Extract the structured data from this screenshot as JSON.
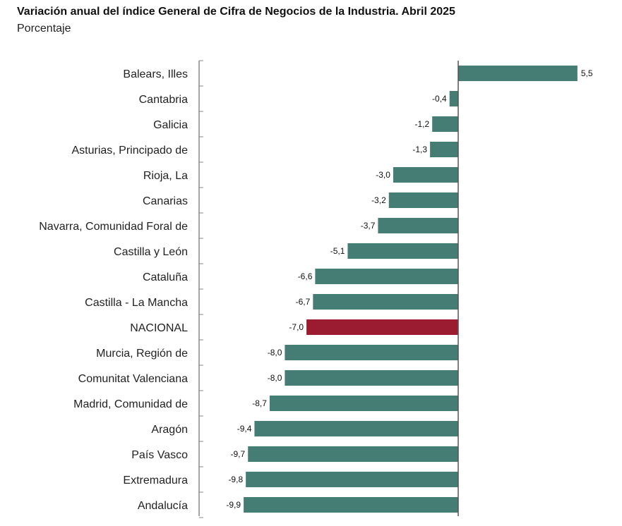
{
  "chart_data": {
    "type": "bar",
    "orientation": "horizontal",
    "title": "Variación anual del índice General de Cifra de Negocios de la Industria. Abril 2025",
    "subtitle": "Porcentaje",
    "categories": [
      "Balears, Illes",
      "Cantabria",
      "Galicia",
      "Asturias, Principado de",
      "Rioja, La",
      "Canarias",
      "Navarra, Comunidad Foral de",
      "Castilla y León",
      "Cataluña",
      "Castilla - La Mancha",
      "NACIONAL",
      "Murcia, Región de",
      "Comunitat Valenciana",
      "Madrid, Comunidad de",
      "Aragón",
      "País Vasco",
      "Extremadura",
      "Andalucía"
    ],
    "values": [
      5.5,
      -0.4,
      -1.2,
      -1.3,
      -3.0,
      -3.2,
      -3.7,
      -5.1,
      -6.6,
      -6.7,
      -7.0,
      -8.0,
      -8.0,
      -8.7,
      -9.4,
      -9.7,
      -9.8,
      -9.9
    ],
    "value_labels": [
      "5,5",
      "-0,4",
      "-1,2",
      "-1,3",
      "-3,0",
      "-3,2",
      "-3,7",
      "-5,1",
      "-6,6",
      "-6,7",
      "-7,0",
      "-8,0",
      "-8,0",
      "-8,7",
      "-9,4",
      "-9,7",
      "-9,8",
      "-9,9"
    ],
    "highlight_category": "NACIONAL",
    "colors": {
      "bar": "#457d74",
      "highlight": "#9b1b30",
      "axis": "#888888"
    },
    "grid": false,
    "legend": false
  }
}
